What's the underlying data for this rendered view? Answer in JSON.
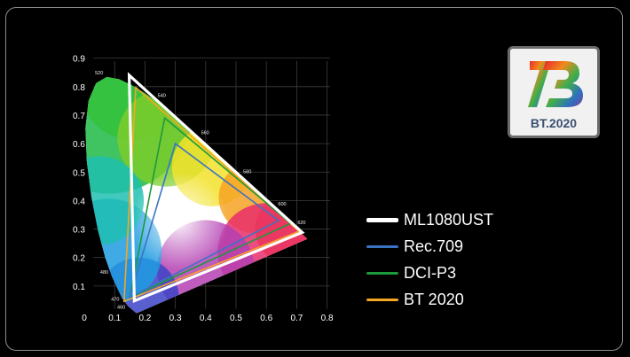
{
  "chart_data": {
    "type": "scatter",
    "title": "",
    "xlabel": "",
    "ylabel": "",
    "xlim": [
      0,
      0.8
    ],
    "ylim": [
      0,
      0.9
    ],
    "x_ticks": [
      "0",
      "0.1",
      "0.2",
      "0.3",
      "0.4",
      "0.5",
      "0.6",
      "0.7",
      "0.8"
    ],
    "y_ticks": [
      "0.1",
      "0.2",
      "0.3",
      "0.4",
      "0.5",
      "0.6",
      "0.7",
      "0.8",
      "0.9"
    ],
    "grid": true,
    "legend_position": "right",
    "spectral_locus_labels": [
      {
        "label": "520",
        "x": 0.074,
        "y": 0.834
      },
      {
        "label": "540",
        "x": 0.23,
        "y": 0.754
      },
      {
        "label": "560",
        "x": 0.373,
        "y": 0.624
      },
      {
        "label": "580",
        "x": 0.512,
        "y": 0.487
      },
      {
        "label": "600",
        "x": 0.627,
        "y": 0.373
      },
      {
        "label": "620",
        "x": 0.691,
        "y": 0.308
      },
      {
        "label": "480",
        "x": 0.091,
        "y": 0.133
      },
      {
        "label": "470",
        "x": 0.124,
        "y": 0.058
      },
      {
        "label": "460",
        "x": 0.144,
        "y": 0.03
      }
    ],
    "series": [
      {
        "name": "BT 2020",
        "color": "#f5a623",
        "points": [
          [
            0.708,
            0.292
          ],
          [
            0.17,
            0.797
          ],
          [
            0.131,
            0.046
          ]
        ]
      },
      {
        "name": "DCI-P3",
        "color": "#1c9a3c",
        "points": [
          [
            0.68,
            0.32
          ],
          [
            0.265,
            0.69
          ],
          [
            0.15,
            0.06
          ]
        ]
      },
      {
        "name": "Rec.709",
        "color": "#3b74c4",
        "points": [
          [
            0.64,
            0.33
          ],
          [
            0.3,
            0.6
          ],
          [
            0.15,
            0.06
          ]
        ]
      },
      {
        "name": "ML1080UST",
        "color": "#ffffff",
        "points": [
          [
            0.718,
            0.288
          ],
          [
            0.148,
            0.84
          ],
          [
            0.165,
            0.048
          ]
        ]
      }
    ]
  },
  "legend": [
    {
      "label": "ML1080UST",
      "color": "#ffffff",
      "thickness": 5
    },
    {
      "label": "Rec.709",
      "color": "#3b74c4",
      "thickness": 3
    },
    {
      "label": "DCI-P3",
      "color": "#1c9a3c",
      "thickness": 3
    },
    {
      "label": "BT 2020",
      "color": "#f5a623",
      "thickness": 3
    }
  ],
  "badge": {
    "text": "BT.2020"
  }
}
